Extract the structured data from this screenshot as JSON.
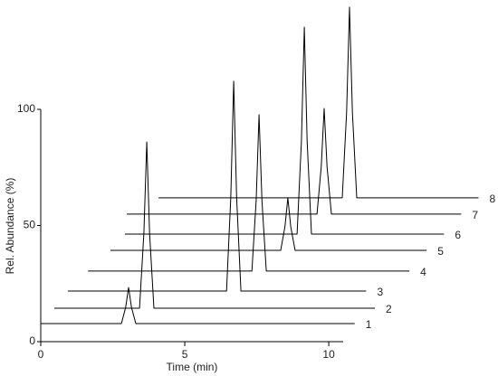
{
  "chart_data": {
    "type": "line",
    "x_label": "Time (min)",
    "y_label": "Rel. Abundance (%)",
    "xlim": [
      0,
      10.5
    ],
    "xticks": [
      0,
      5,
      10
    ],
    "ylim": [
      0,
      100
    ],
    "yticks": [
      0,
      50,
      100
    ],
    "color": "#000000",
    "series": [
      {
        "name": "1",
        "x": [
          0,
          2.8,
          2.95,
          3.05,
          3.15,
          3.3,
          10.9
        ],
        "values": [
          7.8,
          7.8,
          14.8,
          23.3,
          14.8,
          7.8,
          7.8
        ]
      },
      {
        "name": "2",
        "x": [
          0.47,
          3.43,
          3.58,
          3.68,
          3.78,
          3.93,
          11.6
        ],
        "values": [
          14.4,
          14.4,
          46.6,
          86,
          46.6,
          14.4,
          14.4
        ]
      },
      {
        "name": "3",
        "x": [
          0.94,
          6.45,
          6.6,
          6.7,
          6.8,
          6.95,
          11.3
        ],
        "values": [
          21.8,
          21.8,
          62.4,
          112.1,
          62.4,
          21.8,
          21.8
        ]
      },
      {
        "name": "4",
        "x": [
          1.64,
          7.33,
          7.48,
          7.58,
          7.68,
          7.83,
          12.8
        ],
        "values": [
          30.4,
          30.4,
          60.7,
          97.7,
          60.7,
          30.4,
          30.4
        ]
      },
      {
        "name": "5",
        "x": [
          2.42,
          8.33,
          8.48,
          8.58,
          8.68,
          8.83,
          13.4
        ],
        "values": [
          39.3,
          39.3,
          49.5,
          61.9,
          49.5,
          39.3,
          39.3
        ]
      },
      {
        "name": "6",
        "x": [
          2.92,
          8.9,
          9.05,
          9.15,
          9.25,
          9.4,
          14.0
        ],
        "values": [
          46.3,
          46.3,
          86.4,
          135.4,
          86.4,
          46.3,
          46.3
        ]
      },
      {
        "name": "7",
        "x": [
          2.99,
          9.59,
          9.74,
          9.84,
          9.94,
          10.09,
          14.6
        ],
        "values": [
          54.9,
          54.9,
          75.4,
          100.4,
          75.4,
          54.9,
          54.9
        ]
      },
      {
        "name": "8",
        "x": [
          4.09,
          10.47,
          10.62,
          10.72,
          10.82,
          10.97,
          15.2
        ],
        "values": [
          61.9,
          61.9,
          98.8,
          144,
          98.8,
          61.9,
          61.9
        ]
      }
    ]
  }
}
